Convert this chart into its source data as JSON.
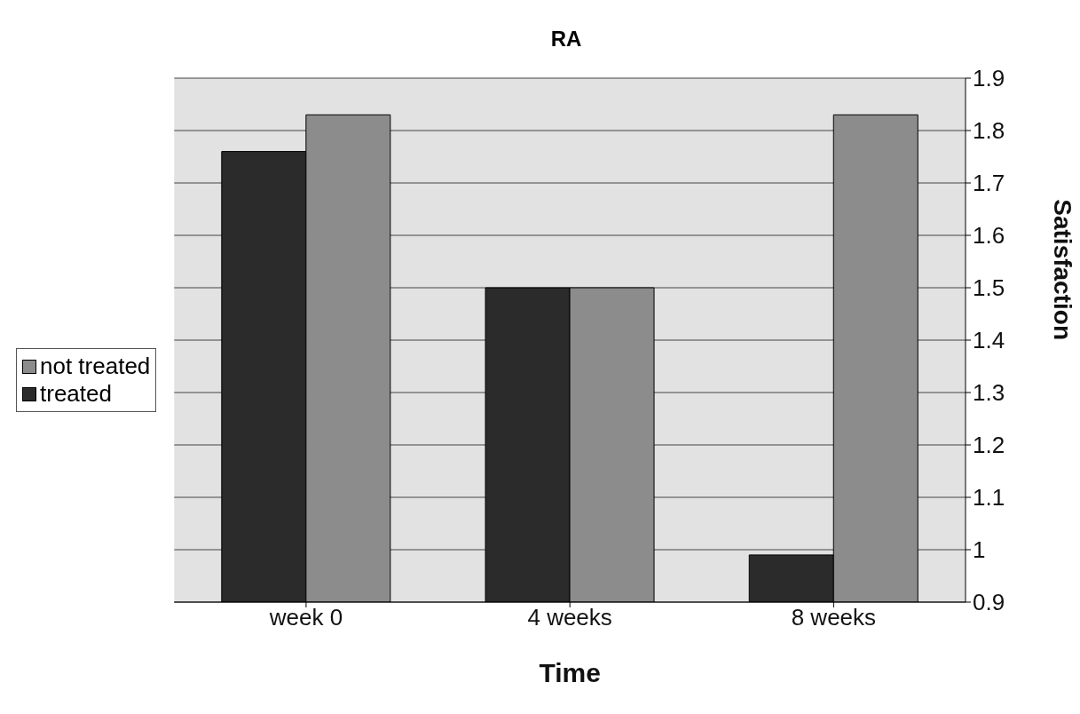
{
  "chart_data": {
    "type": "bar",
    "title": "RA",
    "xlabel": "Time",
    "ylabel": "Satisfaction",
    "categories": [
      "week 0",
      "4 weeks",
      "8 weeks"
    ],
    "series": [
      {
        "name": "treated",
        "color": "#2b2b2b",
        "values": [
          1.76,
          1.5,
          0.99
        ]
      },
      {
        "name": "not treated",
        "color": "#8c8c8c",
        "values": [
          1.83,
          1.5,
          1.83
        ]
      }
    ],
    "ylim": [
      0.9,
      1.9
    ],
    "yticks": [
      0.9,
      1,
      1.1,
      1.2,
      1.3,
      1.4,
      1.5,
      1.6,
      1.7,
      1.8,
      1.9
    ],
    "grid": "y",
    "legend": "left"
  }
}
